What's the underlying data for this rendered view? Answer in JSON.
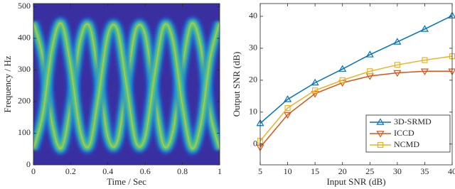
{
  "chart_data": [
    {
      "type": "spectrogram",
      "xlabel": "Time / Sec",
      "ylabel": "Frequency / Hz",
      "x": [
        0,
        0.05,
        0.1,
        0.15,
        0.2,
        0.25,
        0.3,
        0.35,
        0.4,
        0.45,
        0.5,
        0.55,
        0.6,
        0.65,
        0.7,
        0.75,
        0.8,
        0.85,
        0.9,
        0.95,
        1
      ],
      "series": [
        {
          "values": [
            450,
            341,
            132,
            52,
            188,
            391,
            440,
            281,
            88,
            72,
            250,
            428,
            412,
            219,
            60,
            109,
            312,
            448,
            368,
            159,
            50
          ]
        },
        {
          "values": [
            50,
            159,
            368,
            448,
            312,
            109,
            60,
            219,
            412,
            428,
            250,
            72,
            88,
            281,
            440,
            391,
            188,
            52,
            132,
            341,
            450
          ]
        }
      ],
      "background": "#3a2fa0",
      "xlim": [
        0,
        1
      ],
      "xticks": [
        0,
        0.2,
        0.4,
        0.6,
        0.8,
        1
      ],
      "ylim": [
        0,
        510
      ],
      "yticks": [
        0,
        100,
        200,
        300,
        400,
        500
      ]
    },
    {
      "type": "line",
      "xlabel": "Input SNR (dB)",
      "ylabel": "Output SNR (dB)",
      "x": [
        5,
        10,
        15,
        20,
        25,
        30,
        35,
        40
      ],
      "series": [
        {
          "name": "3D-SRMD",
          "color": "#0072bd",
          "marker": "triangle-up",
          "values": [
            6.5,
            14,
            19.2,
            23.5,
            28,
            32,
            36,
            40.2
          ]
        },
        {
          "name": "ICCD",
          "color": "#d95319",
          "marker": "triangle-down",
          "values": [
            -1,
            9.2,
            15.8,
            19.2,
            21.3,
            22.3,
            22.8,
            22.8
          ]
        },
        {
          "name": "NCMD",
          "color": "#edb120",
          "marker": "square",
          "values": [
            1,
            11.3,
            16.8,
            20,
            22.8,
            24.8,
            26.3,
            27.5
          ]
        }
      ],
      "xlim": [
        5,
        40
      ],
      "xticks": [
        5,
        10,
        15,
        20,
        25,
        30,
        35,
        40
      ],
      "ylim": [
        -6.5,
        44
      ],
      "yticks": [
        0,
        10,
        20,
        30,
        40
      ],
      "legend": "lower-right"
    }
  ]
}
